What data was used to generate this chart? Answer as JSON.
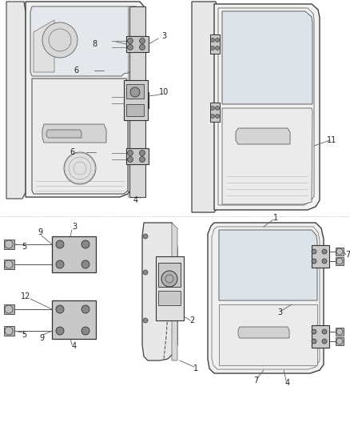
{
  "bg": "#ffffff",
  "lc": "#404040",
  "lc2": "#606060",
  "gray_fill": "#d8d8d8",
  "light_fill": "#efefef",
  "fs": 7,
  "fig_w": 4.38,
  "fig_h": 5.33,
  "dpi": 100
}
